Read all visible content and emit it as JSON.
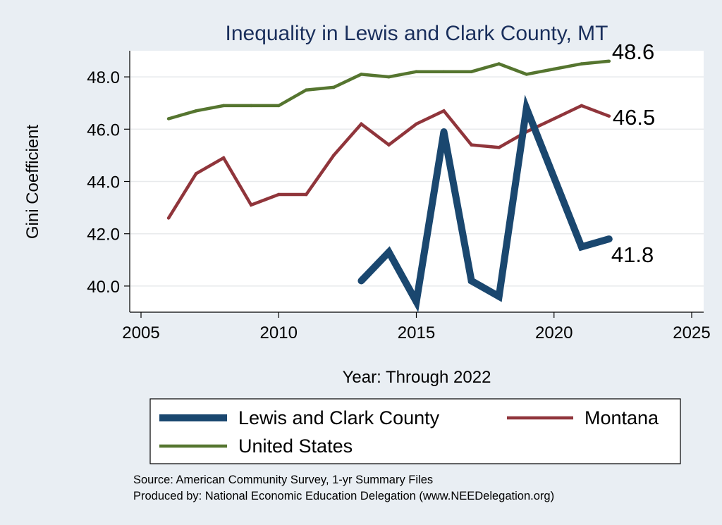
{
  "chart_data": {
    "type": "line",
    "title": "Inequality in Lewis and Clark County, MT",
    "xlabel": "Year: Through 2022",
    "ylabel": "Gini Coefficient",
    "xlim": [
      2005,
      2025
    ],
    "ylim": [
      39.0,
      49.0
    ],
    "x_ticks": [
      "2005",
      "2010",
      "2015",
      "2020",
      "2025"
    ],
    "x_tick_values": [
      2005,
      2010,
      2015,
      2020,
      2025
    ],
    "y_ticks": [
      "40.0",
      "42.0",
      "44.0",
      "46.0",
      "48.0"
    ],
    "y_tick_values": [
      40,
      42,
      44,
      46,
      48
    ],
    "grid": true,
    "legend_position": "bottom",
    "series": [
      {
        "name": "Lewis and Clark County",
        "color": "#1a476f",
        "weight": "heavy",
        "x": [
          2013,
          2014,
          2015,
          2016,
          2017,
          2018,
          2019,
          2021,
          2022
        ],
        "values": [
          40.2,
          41.3,
          39.4,
          45.9,
          40.2,
          39.6,
          46.8,
          41.5,
          41.8
        ],
        "end_label": "41.8"
      },
      {
        "name": "Montana",
        "color": "#90353b",
        "weight": "medium",
        "x": [
          2006,
          2007,
          2008,
          2009,
          2010,
          2011,
          2012,
          2013,
          2014,
          2015,
          2016,
          2017,
          2018,
          2019,
          2020,
          2021,
          2022
        ],
        "values": [
          42.6,
          44.3,
          44.9,
          43.1,
          43.5,
          43.5,
          45.0,
          46.2,
          45.4,
          46.2,
          46.7,
          45.4,
          45.3,
          45.9,
          46.4,
          46.9,
          46.5
        ],
        "end_label": "46.5"
      },
      {
        "name": "United States",
        "color": "#55752f",
        "weight": "medium",
        "x": [
          2006,
          2007,
          2008,
          2009,
          2010,
          2011,
          2012,
          2013,
          2014,
          2015,
          2016,
          2017,
          2018,
          2019,
          2020,
          2021,
          2022
        ],
        "values": [
          46.4,
          46.7,
          46.9,
          46.9,
          46.9,
          47.5,
          47.6,
          48.1,
          48.0,
          48.2,
          48.2,
          48.2,
          48.5,
          48.1,
          48.3,
          48.5,
          48.6
        ],
        "end_label": "48.6"
      }
    ],
    "legend": [
      "Lewis and Clark County",
      "Montana",
      "United States"
    ],
    "notes": [
      "Source: American Community Survey, 1-yr Summary Files",
      "Produced by: National Economic Education Delegation (www.NEEDelegation.org)"
    ]
  }
}
